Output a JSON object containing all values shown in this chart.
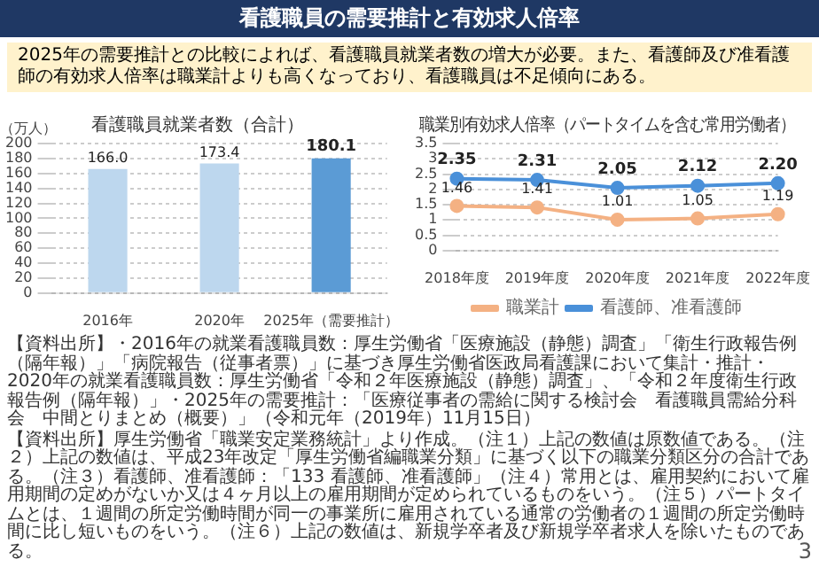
{
  "chart_data": [
    {
      "type": "other",
      "title": "看護職員の需要推計と有効求人倍率",
      "annotations": [
        "2025年の需要推計との比較によれば、看護職員就業者数の増大が必要。また、看護師及び准看護師の有効求人倍率は職業計よりも高くなっており、看護職員は不足傾向にある。",
        "3"
      ]
    },
    {
      "type": "bar",
      "title": "看護職員就業者数（合計）",
      "ylabel": "（万人）",
      "categories": [
        "2016年",
        "2020年",
        "2025年（需要推計）"
      ],
      "values": [
        166.0,
        173.4,
        180.1
      ],
      "colors": [
        "#bdd7ee",
        "#bdd7ee",
        "#5b9bd5"
      ],
      "value_labels": [
        "166.0",
        "173.4",
        "180.1"
      ],
      "ylim": [
        0,
        200
      ],
      "yticks": [
        0,
        20,
        40,
        60,
        80,
        100,
        120,
        140,
        160,
        180,
        200
      ],
      "grid": "y",
      "annotations": [
        "【資料出所】",
        "・2016年の就業看護職員数：厚生労働省「医療施設（静態）調査」「衛生行政報告例（隔年報）」「病院報告（従事者票）」に基づき厚生労働省医政局看護課において集計・推計",
        "・2020年の就業看護職員数：厚生労働省「令和２年医療施設（静態）調査」、「令和２年度衛生行政報告例（隔年報）」",
        "・2025年の需要推計：「医療従事者の需給に関する検討会　看護職員需給分科会　中間とりまとめ（概要）」（令和元年（2019年）11月15日）"
      ]
    },
    {
      "type": "line",
      "title": "職業別有効求人倍率（パートタイムを含む常用労働者）",
      "categories": [
        "2018年度",
        "2019年度",
        "2020年度",
        "2021年度",
        "2022年度"
      ],
      "series": [
        {
          "name": "職業計",
          "color": "#f4b183",
          "values": [
            1.46,
            1.41,
            1.01,
            1.05,
            1.19
          ],
          "value_labels": [
            "1.46",
            "1.41",
            "1.01",
            "1.05",
            "1.19"
          ]
        },
        {
          "name": "看護師、准看護師",
          "color": "#4a90d9",
          "values": [
            2.35,
            2.31,
            2.05,
            2.12,
            2.2
          ],
          "value_labels": [
            "2.35",
            "2.31",
            "2.05",
            "2.12",
            "2.20"
          ]
        }
      ],
      "ylim": [
        0,
        3.5
      ],
      "yticks": [
        0,
        0.5,
        1,
        1.5,
        2,
        2.5,
        3,
        3.5
      ],
      "grid": "y",
      "legend": "bottom",
      "marker": "circle",
      "line_style": "solid",
      "annotations": [
        "【資料出所】厚生労働省「職業安定業務統計」より作成。",
        "（注１）上記の数値は原数値である。",
        "（注２）上記の数値は、平成23年改定「厚生労働省編職業分類」に基づく以下の職業分類区分の合計である。",
        "（注３）看護師、准看護師：「133 看護師、准看護師」",
        "（注４）常用とは、雇用契約において雇用期間の定めがないか又は４ヶ月以上の雇用期間が定められているものをいう。",
        "（注５）パートタイムとは、１週間の所定労働時間が同一の事業所に雇用されている通常の労働者の１週間の所定労働時間に比し短いものをいう。",
        "（注６）上記の数値は、新規学卒者及び新規学卒者求人を除いたものである。"
      ]
    }
  ]
}
